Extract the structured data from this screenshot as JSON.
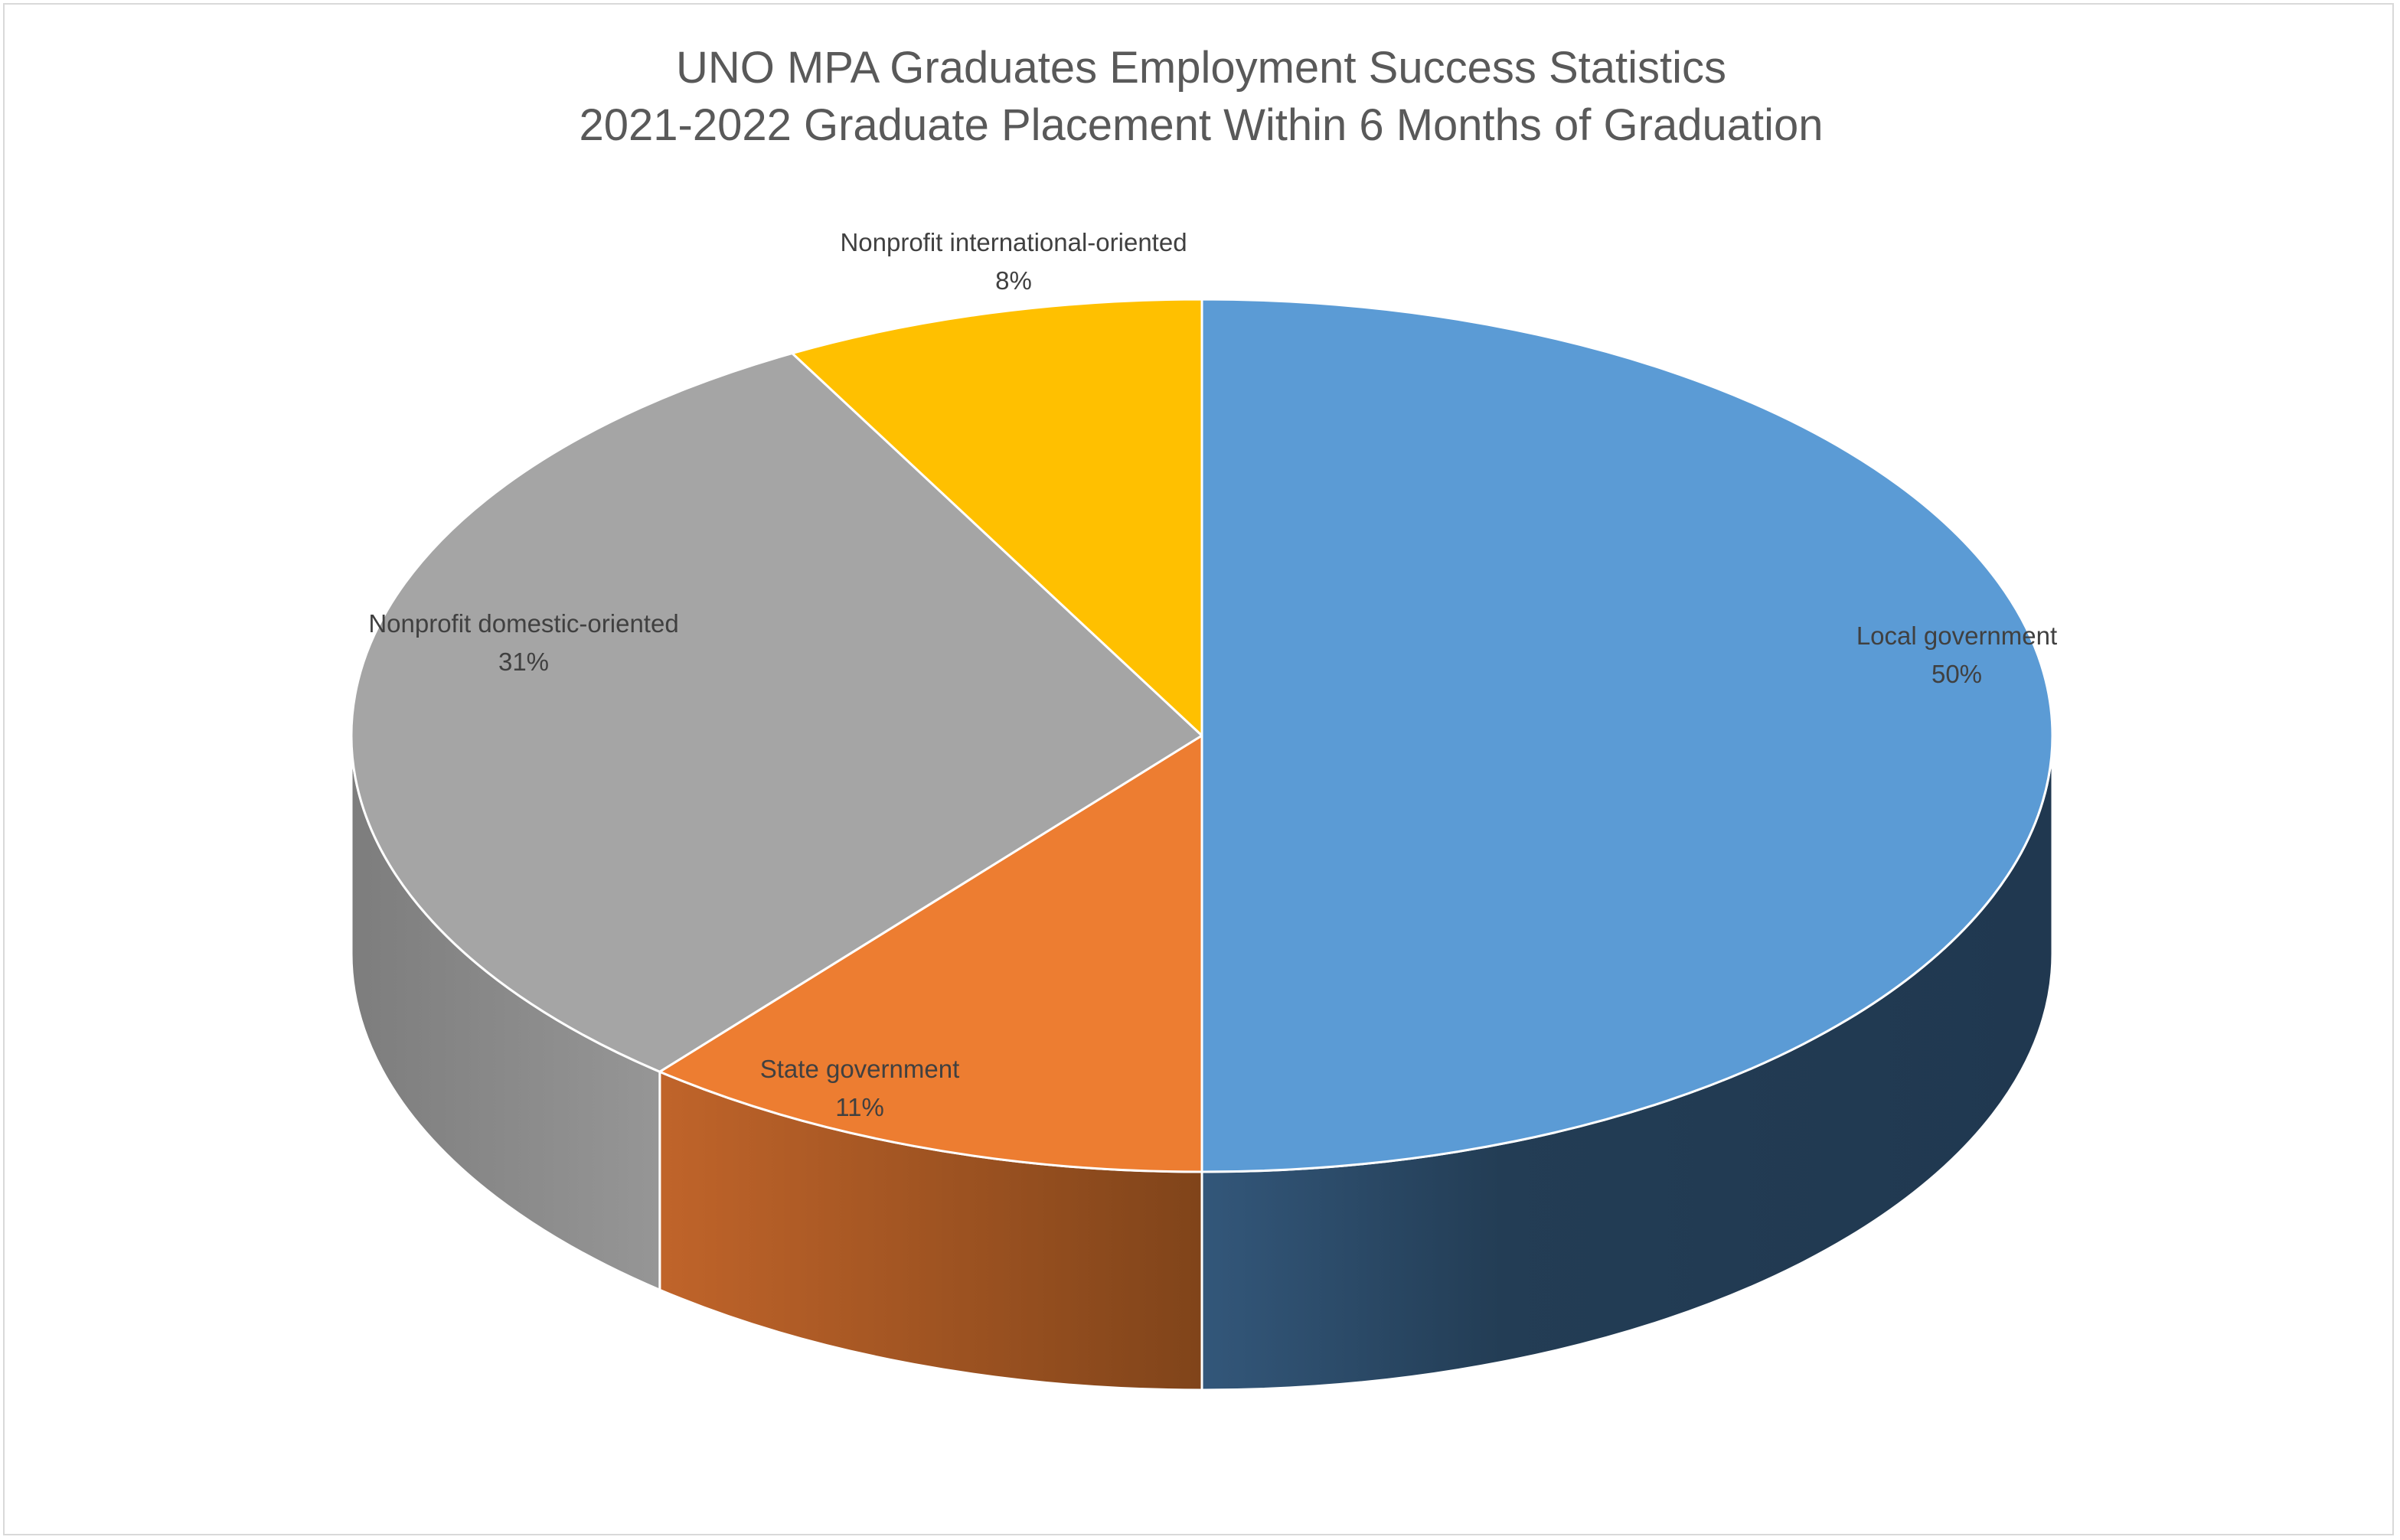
{
  "chart_data": {
    "type": "pie",
    "style": "3d",
    "title": "UNO MPA Graduates Employment Success Statistics",
    "subtitle": "2021-2022 Graduate Placement Within 6 Months of Graduation",
    "slices": [
      {
        "name": "Local government",
        "value": 50,
        "label": "50%",
        "color": "#5b9bd5",
        "side_color": "#243e55"
      },
      {
        "name": "State government",
        "value": 11,
        "label": "11%",
        "color": "#ed7d31",
        "side_color": "#a6561d"
      },
      {
        "name": "Nonprofit domestic-oriented",
        "value": 31,
        "label": "31%",
        "color": "#a5a5a5",
        "side_color": "#8c8c8c"
      },
      {
        "name": "Nonprofit international-oriented",
        "value": 8,
        "label": "8%",
        "color": "#ffc000",
        "side_color": "#b38600"
      }
    ],
    "legend": "none",
    "data_labels": "category and percentage"
  }
}
